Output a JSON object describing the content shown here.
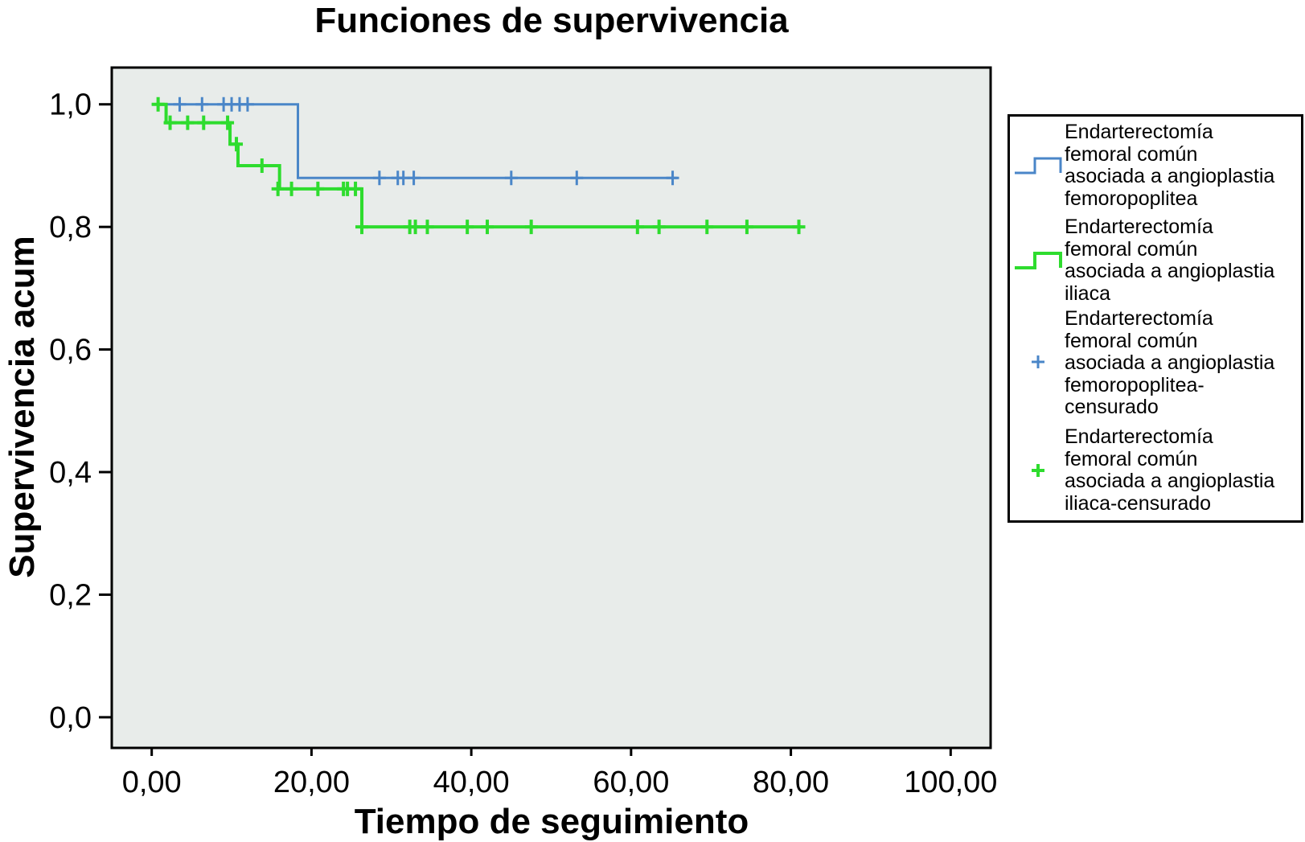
{
  "chart_data": {
    "type": "line",
    "title": "Funciones de supervivencia",
    "xlabel": "Tiempo de seguimiento",
    "ylabel": "Supervivencia acum",
    "xlim": [
      -5,
      105
    ],
    "ylim": [
      -0.05,
      1.06
    ],
    "x_ticks": [
      0,
      20,
      40,
      60,
      80,
      100
    ],
    "x_tick_labels": [
      "0,00",
      "20,00",
      "40,00",
      "60,00",
      "80,00",
      "100,00"
    ],
    "y_ticks": [
      0,
      0.2,
      0.4,
      0.6,
      0.8,
      1.0
    ],
    "y_tick_labels": [
      "0,0",
      "0,2",
      "0,4",
      "0,6",
      "0,8",
      "1,0"
    ],
    "grid": false,
    "background": "#e8ecea",
    "legend_position": "right",
    "series": [
      {
        "name": "Endarterectomía femoral común asociada a angioplastia femoropoplitea",
        "color": "#4a86c8",
        "step_x": [
          0,
          18.3,
          18.3,
          65.8
        ],
        "step_y": [
          1.0,
          1.0,
          0.88,
          0.88
        ],
        "censored": [
          {
            "x": 3.5,
            "y": 1.0
          },
          {
            "x": 6.3,
            "y": 1.0
          },
          {
            "x": 9.0,
            "y": 1.0
          },
          {
            "x": 10.0,
            "y": 1.0
          },
          {
            "x": 11.0,
            "y": 1.0
          },
          {
            "x": 12.0,
            "y": 1.0
          },
          {
            "x": 28.5,
            "y": 0.88
          },
          {
            "x": 30.8,
            "y": 0.88
          },
          {
            "x": 31.5,
            "y": 0.88
          },
          {
            "x": 32.8,
            "y": 0.88
          },
          {
            "x": 45.0,
            "y": 0.88
          },
          {
            "x": 53.2,
            "y": 0.88
          },
          {
            "x": 65.2,
            "y": 0.88
          }
        ]
      },
      {
        "name": "Endarterectomía femoral común asociada a angioplastia iliaca",
        "color": "#2edc2e",
        "step_x": [
          0.8,
          1.8,
          1.8,
          9.8,
          9.8,
          10.8,
          10.8,
          16.0,
          16.0,
          26.3,
          26.3,
          81.3
        ],
        "step_y": [
          1.0,
          1.0,
          0.97,
          0.97,
          0.935,
          0.935,
          0.9,
          0.9,
          0.862,
          0.862,
          0.8,
          0.8
        ],
        "censored": [
          {
            "x": 0.8,
            "y": 1.0
          },
          {
            "x": 2.3,
            "y": 0.97
          },
          {
            "x": 4.5,
            "y": 0.97
          },
          {
            "x": 6.5,
            "y": 0.97
          },
          {
            "x": 9.5,
            "y": 0.97
          },
          {
            "x": 10.6,
            "y": 0.935
          },
          {
            "x": 13.8,
            "y": 0.9
          },
          {
            "x": 15.8,
            "y": 0.862
          },
          {
            "x": 17.5,
            "y": 0.862
          },
          {
            "x": 20.8,
            "y": 0.862
          },
          {
            "x": 24.0,
            "y": 0.862
          },
          {
            "x": 24.5,
            "y": 0.862
          },
          {
            "x": 25.5,
            "y": 0.862
          },
          {
            "x": 26.3,
            "y": 0.8
          },
          {
            "x": 32.3,
            "y": 0.8
          },
          {
            "x": 33.0,
            "y": 0.8
          },
          {
            "x": 34.5,
            "y": 0.8
          },
          {
            "x": 39.5,
            "y": 0.8
          },
          {
            "x": 42.0,
            "y": 0.8
          },
          {
            "x": 47.5,
            "y": 0.8
          },
          {
            "x": 60.8,
            "y": 0.8
          },
          {
            "x": 63.5,
            "y": 0.8
          },
          {
            "x": 69.5,
            "y": 0.8
          },
          {
            "x": 74.5,
            "y": 0.8
          },
          {
            "x": 81.0,
            "y": 0.8
          }
        ]
      }
    ]
  },
  "legend": {
    "items": [
      {
        "label": "Endarterectomía\nfemoral común\nasociada a angioplastia\nfemoropoplitea",
        "color": "#4a86c8",
        "kind": "step-line"
      },
      {
        "label": "Endarterectomía\nfemoral común\nasociada a angioplastia\niliaca",
        "color": "#2edc2e",
        "kind": "step-line"
      },
      {
        "label": "Endarterectomía\nfemoral común\nasociada a angioplastia\nfemoropoplitea-\ncensurado",
        "color": "#4a86c8",
        "kind": "plus"
      },
      {
        "label": "Endarterectomía\nfemoral común\nasociada a angioplastia\niliaca-censurado",
        "color": "#2edc2e",
        "kind": "plus"
      }
    ]
  }
}
